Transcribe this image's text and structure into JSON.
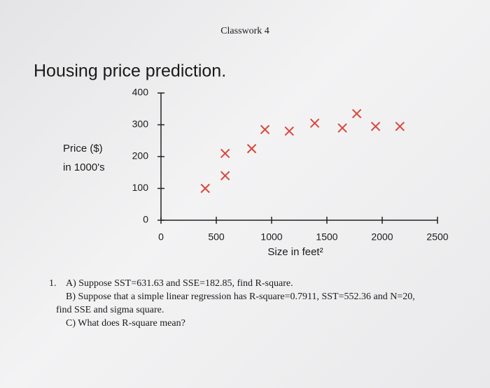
{
  "header": {
    "title": "Classwork 4"
  },
  "chart_data": {
    "type": "scatter",
    "title": "Housing price prediction.",
    "y_label_lines": [
      "Price ($)",
      "in 1000's"
    ],
    "x_label": "Size in feet²",
    "x": [
      400,
      580,
      580,
      820,
      940,
      1160,
      1390,
      1640,
      1770,
      1940,
      2160
    ],
    "values": [
      100,
      140,
      210,
      225,
      285,
      280,
      305,
      290,
      335,
      295,
      295
    ],
    "color": "#d8473b",
    "xlim": [
      0,
      2500
    ],
    "xticks": [
      0,
      500,
      1000,
      1500,
      2000,
      2500
    ],
    "ylim": [
      0,
      400
    ],
    "yticks": [
      0,
      100,
      200,
      300,
      400
    ]
  },
  "questions": {
    "number": "1.",
    "lines": [
      "A) Suppose SST=631.63 and SSE=182.85, find R-square.",
      "B) Suppose that a simple linear regression has R-square=0.7911, SST=552.36 and N=20,",
      "find SSE and sigma square.",
      "C) What does R-square mean?"
    ]
  }
}
